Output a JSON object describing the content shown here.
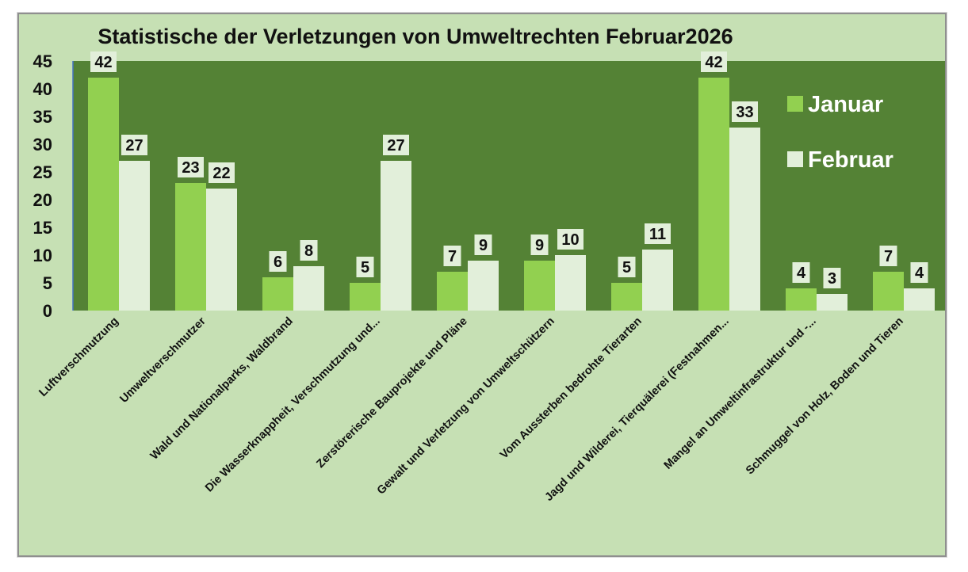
{
  "chart_data": {
    "type": "bar",
    "title": "Statistische der Verletzungen von Umweltrechten Februar2026",
    "categories": [
      "Luftverschmutzung",
      "Umweltverschmutzer",
      "Wald und Nationalparks, Waldbrand",
      "Die Wasserknappheit, Verschmutzung und...",
      "Zerstörerische Bauprojekte und Pläne",
      "Gewalt und Verletzung von Umweltschützern",
      "Vom Aussterben bedrohte Tierarten",
      "Jagd und Wilderei, Tierquälerei (Festnahmen...",
      "Mangel an Umweltinfrastruktur und -...",
      "Schmuggel von Holz, Boden und Tieren"
    ],
    "series": [
      {
        "name": "Januar",
        "color": "#92d050",
        "values": [
          42,
          23,
          6,
          5,
          7,
          9,
          5,
          42,
          4,
          7
        ]
      },
      {
        "name": "Februar",
        "color": "#e2efda",
        "values": [
          27,
          22,
          8,
          27,
          9,
          10,
          11,
          33,
          3,
          4
        ]
      }
    ],
    "yticks": [
      "0",
      "5",
      "10",
      "15",
      "20",
      "25",
      "30",
      "35",
      "40",
      "45"
    ],
    "ylim": [
      0,
      45
    ],
    "xlabel": "",
    "ylabel": "",
    "legend_position": "top-right",
    "plot_background": "#548235",
    "chart_background": "#c6e0b4"
  }
}
